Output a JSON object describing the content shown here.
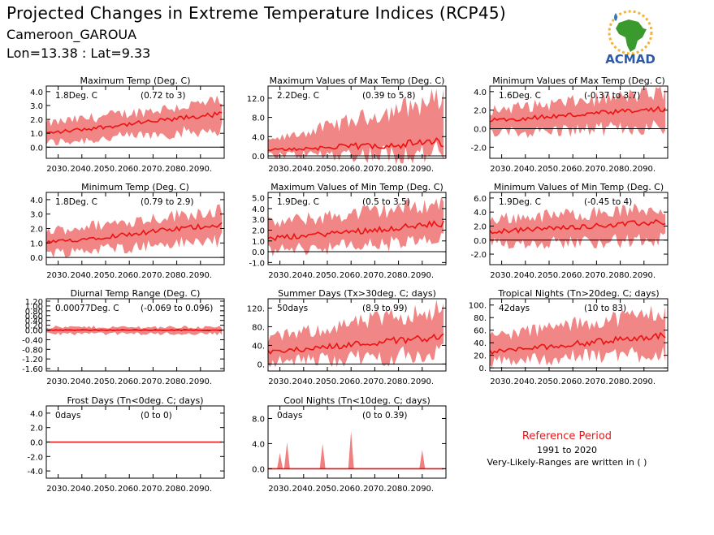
{
  "header": {
    "title": "Projected Changes in Extreme Temperature Indices (RCP45)",
    "location": "Cameroon_GAROUA",
    "coords": "Lon=13.38 : Lat=9.33"
  },
  "logo": {
    "text": "ACMAD",
    "icon": "africa-logo-icon"
  },
  "reference": {
    "title": "Reference Period",
    "years": "1991 to 2020",
    "note": "Very-Likely-Ranges are written in ( )"
  },
  "colors": {
    "median": "#ee1111",
    "range": "#f08080",
    "zero_line": "#000000"
  },
  "chart_data": [
    {
      "type": "area",
      "title": "Maximum Temp (Deg. C)",
      "value_text": "1.8Deg. C",
      "range_text": "(0.72 to 3)",
      "xlim": [
        2025,
        2100
      ],
      "xticks": [
        "2030.",
        "2040.",
        "2050.",
        "2060.",
        "2070.",
        "2080.",
        "2090."
      ],
      "ylim": [
        -0.8,
        4.4
      ],
      "yticks": [
        "0.0",
        "1.0",
        "2.0",
        "3.0",
        "4.0"
      ],
      "median_start": 1.0,
      "median_end": 2.4,
      "lower_start": 0.3,
      "lower_end": 1.3,
      "upper_start": 1.7,
      "upper_end": 3.3
    },
    {
      "type": "area",
      "title": "Maximum Values of Max Temp (Deg. C)",
      "value_text": "2.2Deg. C",
      "range_text": "(0.39 to 5.8)",
      "xlim": [
        2025,
        2100
      ],
      "xticks": [
        "2030.",
        "2040.",
        "2050.",
        "2060.",
        "2070.",
        "2080.",
        "2090."
      ],
      "ylim": [
        -0.5,
        14.5
      ],
      "yticks": [
        "0.0",
        "4.0",
        "8.0",
        "12.0"
      ],
      "median_start": 1.2,
      "median_end": 2.8,
      "lower_start": 0.2,
      "lower_end": 0.5,
      "upper_start": 3.0,
      "upper_end": 12.0
    },
    {
      "type": "area",
      "title": "Minimum Values of Max Temp (Deg. C)",
      "value_text": "1.6Deg. C",
      "range_text": "(-0.37 to 3.7)",
      "xlim": [
        2025,
        2100
      ],
      "xticks": [
        "2030.",
        "2040.",
        "2050.",
        "2060.",
        "2070.",
        "2080.",
        "2090."
      ],
      "ylim": [
        -3.2,
        4.6
      ],
      "yticks": [
        "-2.0",
        "0.0",
        "2.0",
        "4.0"
      ],
      "median_start": 0.9,
      "median_end": 2.1,
      "lower_start": -0.5,
      "lower_end": 0.2,
      "upper_start": 2.0,
      "upper_end": 3.9
    },
    {
      "type": "area",
      "title": "Minimum Temp (Deg. C)",
      "value_text": "1.8Deg. C",
      "range_text": "(0.79 to 2.9)",
      "xlim": [
        2025,
        2100
      ],
      "xticks": [
        "2030.",
        "2040.",
        "2050.",
        "2060.",
        "2070.",
        "2080.",
        "2090."
      ],
      "ylim": [
        -0.5,
        4.5
      ],
      "yticks": [
        "0.0",
        "1.0",
        "2.0",
        "3.0",
        "4.0"
      ],
      "median_start": 1.0,
      "median_end": 2.3,
      "lower_start": 0.3,
      "lower_end": 1.2,
      "upper_start": 1.8,
      "upper_end": 3.3
    },
    {
      "type": "area",
      "title": "Maximum Values of Min Temp (Deg. C)",
      "value_text": "1.9Deg. C",
      "range_text": "(0.5 to 3.5)",
      "xlim": [
        2025,
        2100
      ],
      "xticks": [
        "2030.",
        "2040.",
        "2050.",
        "2060.",
        "2070.",
        "2080.",
        "2090."
      ],
      "ylim": [
        -1.2,
        5.5
      ],
      "yticks": [
        "-1.0",
        "0.0",
        "1.0",
        "2.0",
        "3.0",
        "4.0",
        "5.0"
      ],
      "median_start": 1.2,
      "median_end": 2.6,
      "lower_start": 0.1,
      "lower_end": 1.0,
      "upper_start": 2.6,
      "upper_end": 4.5
    },
    {
      "type": "area",
      "title": "Minimum Values of Min Temp (Deg. C)",
      "value_text": "1.9Deg. C",
      "range_text": "(-0.45 to 4)",
      "xlim": [
        2025,
        2100
      ],
      "xticks": [
        "2030.",
        "2040.",
        "2050.",
        "2060.",
        "2070.",
        "2080.",
        "2090."
      ],
      "ylim": [
        -3.5,
        6.8
      ],
      "yticks": [
        "-2.0",
        "0.0",
        "2.0",
        "4.0",
        "6.0"
      ],
      "median_start": 1.2,
      "median_end": 2.6,
      "lower_start": -0.5,
      "lower_end": 0.0,
      "upper_start": 3.0,
      "upper_end": 4.5
    },
    {
      "type": "area",
      "title": "Diurnal Temp Range (Deg. C)",
      "value_text": "0.00077Deg. C",
      "range_text": "(-0.069 to 0.096)",
      "xlim": [
        2025,
        2100
      ],
      "xticks": [
        "2030.",
        "2040.",
        "2050.",
        "2060.",
        "2070.",
        "2080.",
        "2090."
      ],
      "ylim": [
        -1.7,
        1.3
      ],
      "yticks": [
        "-1.60",
        "-1.20",
        "-0.80",
        "-0.40",
        "0.00",
        "0.20",
        "0.40",
        "0.60",
        "0.80",
        "1.00",
        "1.20"
      ],
      "median_start": 0.0,
      "median_end": 0.0,
      "lower_start": -0.15,
      "lower_end": -0.15,
      "upper_start": 0.12,
      "upper_end": 0.12
    },
    {
      "type": "area",
      "title": "Summer Days (Tx>30deg. C; days)",
      "value_text": "50days",
      "range_text": "(8.9 to 99)",
      "xlim": [
        2025,
        2100
      ],
      "xticks": [
        "2030.",
        "2040.",
        "2050.",
        "2060.",
        "2070.",
        "2080.",
        "2090."
      ],
      "ylim": [
        -15,
        140
      ],
      "yticks": [
        "0.",
        "40.",
        "80.",
        "120."
      ],
      "median_start": 25,
      "median_end": 60,
      "lower_start": 5,
      "lower_end": 20,
      "upper_start": 55,
      "upper_end": 120
    },
    {
      "type": "area",
      "title": "Tropical Nights (Tn>20deg. C; days)",
      "value_text": "42days",
      "range_text": "(10 to 83)",
      "xlim": [
        2025,
        2100
      ],
      "xticks": [
        "2030.",
        "2040.",
        "2050.",
        "2060.",
        "2070.",
        "2080.",
        "2090."
      ],
      "ylim": [
        -5,
        110
      ],
      "yticks": [
        "0.",
        "20.",
        "40.",
        "60.",
        "80.",
        "100."
      ],
      "median_start": 25,
      "median_end": 52,
      "lower_start": 10,
      "lower_end": 25,
      "upper_start": 50,
      "upper_end": 90
    },
    {
      "type": "area",
      "title": "Frost Days (Tn<0deg. C; days)",
      "value_text": "0days",
      "range_text": "(0 to 0)",
      "xlim": [
        2025,
        2100
      ],
      "xticks": [
        "2030.",
        "2040.",
        "2050.",
        "2060.",
        "2070.",
        "2080.",
        "2090."
      ],
      "ylim": [
        -5,
        5
      ],
      "yticks": [
        "-4.0",
        "-2.0",
        "0.0",
        "2.0",
        "4.0"
      ],
      "median_start": 0,
      "median_end": 0,
      "lower_start": 0,
      "lower_end": 0,
      "upper_start": 0,
      "upper_end": 0
    },
    {
      "type": "area",
      "title": "Cool Nights (Tn<10deg. C; days)",
      "value_text": "0days",
      "range_text": "(0 to 0.39)",
      "xlim": [
        2025,
        2100
      ],
      "xticks": [
        "2030.",
        "2040.",
        "2050.",
        "2060.",
        "2070.",
        "2080.",
        "2090."
      ],
      "ylim": [
        -1.5,
        10
      ],
      "yticks": [
        "0.0",
        "4.0",
        "8.0"
      ],
      "median_start": 0,
      "median_end": 0,
      "lower_start": 0,
      "lower_end": 0,
      "upper_start": 0,
      "upper_end": 0,
      "spikes": [
        [
          2030,
          2.5
        ],
        [
          2033,
          4.2
        ],
        [
          2048,
          4.0
        ],
        [
          2060,
          6.0
        ],
        [
          2090,
          3.0
        ]
      ]
    }
  ]
}
